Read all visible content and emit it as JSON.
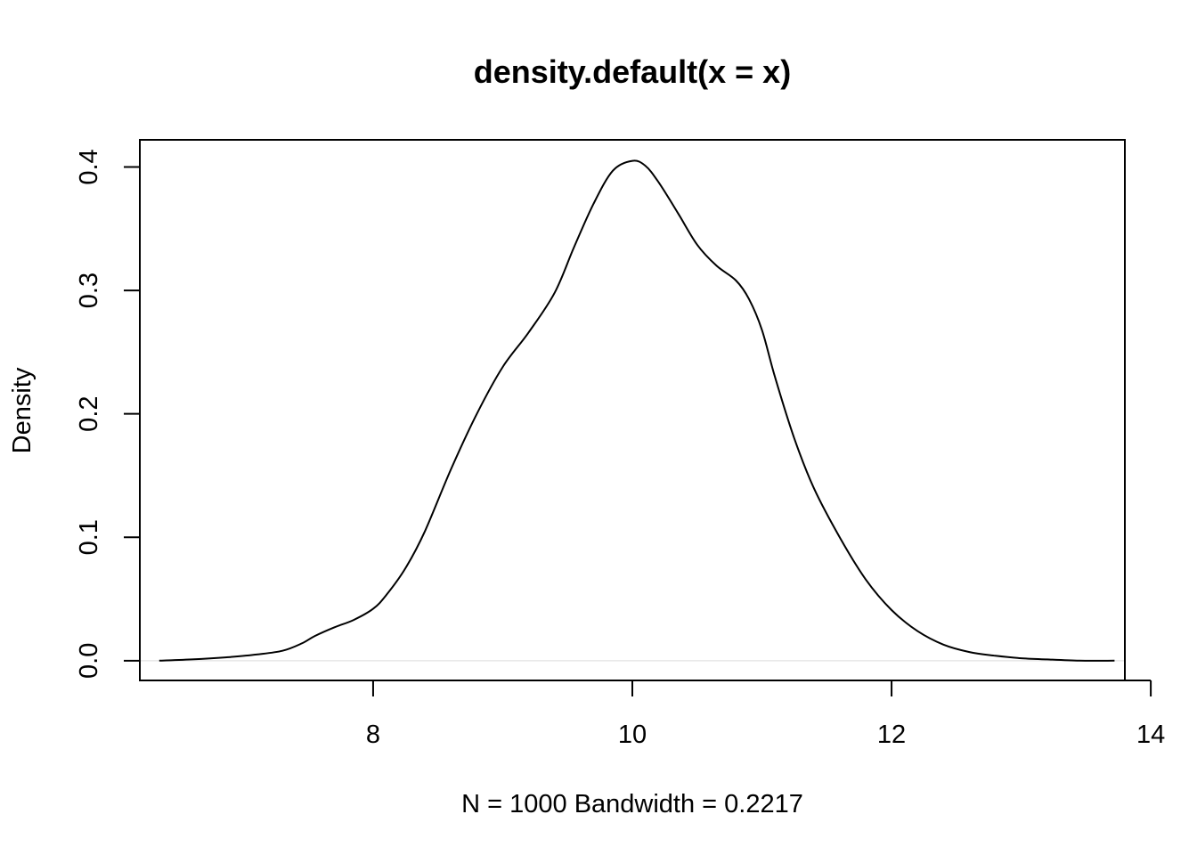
{
  "chart_data": {
    "type": "line",
    "title": "density.default(x = x)",
    "xlabel": "N = 1000   Bandwidth = 0.2217",
    "ylabel": "Density",
    "xlim": [
      6.2,
      13.8
    ],
    "ylim": [
      -0.016,
      0.422
    ],
    "xticks": [
      8,
      10,
      12,
      14
    ],
    "xtick_labels": [
      "8",
      "10",
      "12",
      "14"
    ],
    "yticks": [
      0.0,
      0.1,
      0.2,
      0.3,
      0.4
    ],
    "ytick_labels": [
      "0.0",
      "0.1",
      "0.2",
      "0.3",
      "0.4"
    ],
    "grid": false,
    "baseline": 0,
    "baseline_color": "#e6e6e6",
    "line_color": "#000000",
    "series": [
      {
        "x": [
          6.35,
          6.6,
          6.9,
          7.1,
          7.3,
          7.45,
          7.55,
          7.7,
          7.85,
          8.0,
          8.1,
          8.25,
          8.4,
          8.6,
          8.8,
          9.0,
          9.2,
          9.4,
          9.55,
          9.7,
          9.85,
          10.0,
          10.1,
          10.2,
          10.35,
          10.5,
          10.65,
          10.8,
          10.9,
          11.0,
          11.1,
          11.25,
          11.4,
          11.6,
          11.8,
          12.0,
          12.2,
          12.4,
          12.6,
          12.8,
          13.0,
          13.2,
          13.45,
          13.72
        ],
        "y": [
          0.0,
          0.001,
          0.003,
          0.005,
          0.008,
          0.014,
          0.02,
          0.027,
          0.033,
          0.042,
          0.053,
          0.075,
          0.105,
          0.155,
          0.2,
          0.238,
          0.266,
          0.298,
          0.335,
          0.37,
          0.397,
          0.405,
          0.401,
          0.388,
          0.363,
          0.337,
          0.32,
          0.308,
          0.293,
          0.268,
          0.23,
          0.18,
          0.14,
          0.1,
          0.066,
          0.041,
          0.024,
          0.013,
          0.007,
          0.004,
          0.002,
          0.001,
          0.0,
          0.0
        ]
      }
    ]
  }
}
